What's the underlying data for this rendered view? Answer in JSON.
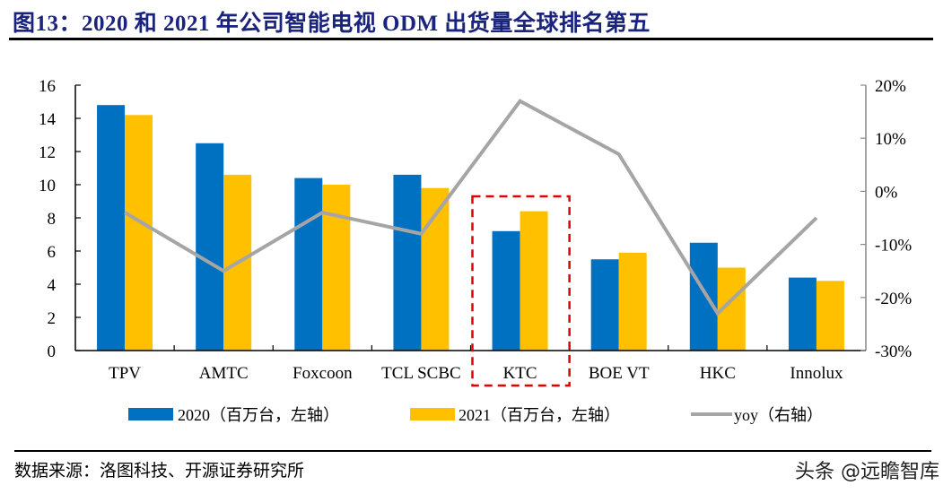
{
  "title": "图13：2020 和 2021 年公司智能电视 ODM 出货量全球排名第五",
  "source": "数据来源：洛图科技、开源证券研究所",
  "watermark": "头条 @远瞻智库",
  "chart_data": {
    "type": "bar",
    "categories": [
      "TPV",
      "AMTC",
      "Foxcoon",
      "TCL SCBC",
      "KTC",
      "BOE VT",
      "HKC",
      "Innolux"
    ],
    "series": [
      {
        "name": "2020（百万台，左轴）",
        "type": "bar",
        "axis": "left",
        "color": "#0070c0",
        "values": [
          14.8,
          12.5,
          10.4,
          10.6,
          7.2,
          5.5,
          6.5,
          4.4
        ]
      },
      {
        "name": "2021（百万台，左轴）",
        "type": "bar",
        "axis": "left",
        "color": "#ffc000",
        "values": [
          14.2,
          10.6,
          10.0,
          9.8,
          8.4,
          5.9,
          5.0,
          4.2
        ]
      },
      {
        "name": "yoy（右轴）",
        "type": "line",
        "axis": "right",
        "color": "#a5a5a5",
        "values": [
          -4,
          -15,
          -4,
          -8,
          17,
          7,
          -23,
          -5
        ]
      }
    ],
    "y_left": {
      "lim": [
        0,
        16
      ],
      "ticks": [
        0,
        2,
        4,
        6,
        8,
        10,
        12,
        14,
        16
      ],
      "tick_labels": [
        "0",
        "2",
        "4",
        "6",
        "8",
        "10",
        "12",
        "14",
        "16"
      ]
    },
    "y_right": {
      "lim": [
        -30,
        20
      ],
      "ticks": [
        -30,
        -20,
        -10,
        0,
        10,
        20
      ],
      "tick_labels": [
        "-30%",
        "-20%",
        "-10%",
        "0%",
        "10%",
        "20%"
      ]
    },
    "highlight": {
      "category": "KTC",
      "style": "red dashed box",
      "color": "#e00000"
    },
    "legend": "bottom",
    "grid": false
  }
}
